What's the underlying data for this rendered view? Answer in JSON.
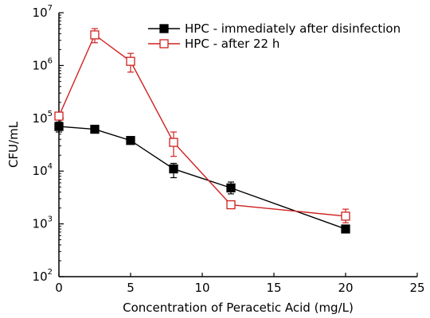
{
  "chart_data": {
    "type": "line",
    "xlabel": "Concentration of Peracetic Acid (mg/L)",
    "ylabel": "CFU/mL",
    "xlim": [
      0,
      25
    ],
    "ylim": [
      100,
      10000000
    ],
    "yscale": "log",
    "grid": false,
    "legend_position": "top-right",
    "x_ticks": [
      0,
      5,
      10,
      15,
      20,
      25
    ],
    "x_tick_labels": [
      "0",
      "5",
      "10",
      "15",
      "20",
      "25"
    ],
    "y_ticks": [
      100,
      1000,
      10000,
      100000,
      1000000,
      10000000
    ],
    "y_tick_labels": [
      {
        "base": "10",
        "exp": "2"
      },
      {
        "base": "10",
        "exp": "3"
      },
      {
        "base": "10",
        "exp": "4"
      },
      {
        "base": "10",
        "exp": "5"
      },
      {
        "base": "10",
        "exp": "6"
      },
      {
        "base": "10",
        "exp": "7"
      }
    ],
    "series": [
      {
        "name": "HPC - immediately after disinfection",
        "color": "#000000",
        "marker": "filled-square",
        "x": [
          0,
          2.5,
          5,
          8,
          12,
          20
        ],
        "y": [
          70000,
          62000,
          38000,
          11000,
          4800,
          800
        ],
        "err_low": [
          55000,
          57000,
          35000,
          7500,
          3700,
          750
        ],
        "err_high": [
          85000,
          67000,
          41000,
          14000,
          6200,
          850
        ]
      },
      {
        "name": "HPC - after 22 h",
        "color": "#d02020",
        "marker": "open-square",
        "x": [
          0,
          2.5,
          5,
          8,
          12,
          20
        ],
        "y": [
          110000,
          3800000,
          1200000,
          35000,
          2300,
          1400
        ],
        "err_low": [
          95000,
          2700000,
          750000,
          19000,
          2150,
          1050
        ],
        "err_high": [
          125000,
          5000000,
          1700000,
          55000,
          2450,
          1900
        ]
      }
    ]
  }
}
